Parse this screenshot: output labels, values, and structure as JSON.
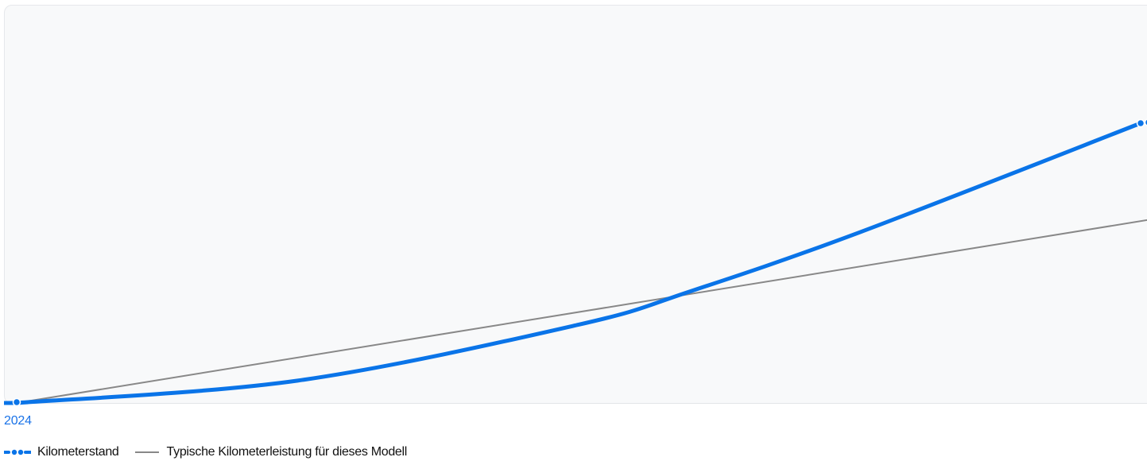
{
  "chart_data": {
    "type": "line",
    "x_ticks": [
      "2024"
    ],
    "series": [
      {
        "name": "Kilometerstand",
        "color": "#0a74e8",
        "style": "thick-dotted-endpoints",
        "points": [
          [
            0,
            0
          ],
          [
            0.25,
            0.08
          ],
          [
            0.5,
            0.28
          ],
          [
            0.6,
            0.4
          ],
          [
            0.75,
            0.61
          ],
          [
            1.0,
            1.0
          ]
        ]
      },
      {
        "name": "Typische Kilometerleistung für dieses Modell",
        "color": "#888888",
        "style": "thin",
        "points": [
          [
            0,
            0
          ],
          [
            1.0,
            0.65
          ]
        ]
      }
    ],
    "grid": false,
    "legend_position": "bottom-left"
  },
  "legend": {
    "item1": "Kilometerstand",
    "item2": "Typische Kilometerleistung für dieses Modell"
  },
  "colors": {
    "primary": "#0a74e8",
    "reference": "#888888",
    "plot_background": "#f8f9fa"
  }
}
